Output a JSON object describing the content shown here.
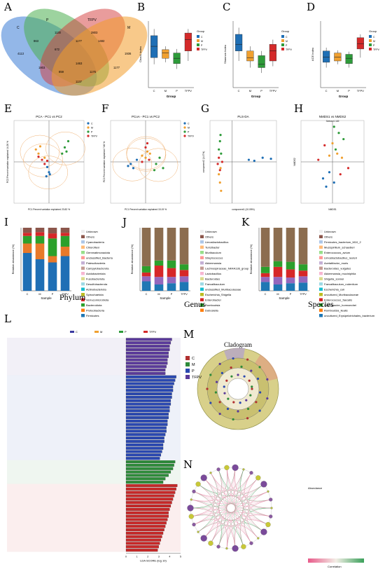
{
  "panel_letters": [
    "A",
    "B",
    "C",
    "D",
    "E",
    "F",
    "G",
    "H",
    "I",
    "J",
    "K",
    "L",
    "M",
    "N"
  ],
  "colors": {
    "C": "#1f6fb5",
    "M": "#f0a030",
    "P": "#2e9b3a",
    "TFPV": "#d42a2a",
    "purple": "#5a3a9a"
  },
  "chart_data": [
    {
      "panel": "A",
      "type": "venn",
      "sets": [
        "C",
        "P",
        "TFPV",
        "M"
      ],
      "colors": [
        "#3a7bd5",
        "#4caf50",
        "#d43a3a",
        "#f29c2a"
      ],
      "regions": [
        "4113",
        "1130",
        "2803",
        "1936",
        "863",
        "672",
        "1177",
        "1482",
        "1803",
        "1463",
        "1176",
        "1177",
        "859",
        "1137"
      ]
    },
    {
      "panel": "B",
      "type": "boxplot",
      "ylabel": "Chao1 Index",
      "xlabel": "Group",
      "categories": [
        "C",
        "M",
        "P",
        "TFPV"
      ],
      "legend_title": "Group",
      "boxes": [
        {
          "name": "C",
          "min": 0.35,
          "q1": 0.45,
          "median": 0.62,
          "q3": 0.78,
          "max": 0.88
        },
        {
          "name": "M",
          "min": 0.38,
          "q1": 0.44,
          "median": 0.52,
          "q3": 0.57,
          "max": 0.62
        },
        {
          "name": "P",
          "min": 0.28,
          "q1": 0.36,
          "median": 0.44,
          "q3": 0.52,
          "max": 0.58
        },
        {
          "name": "TFPV",
          "min": 0.4,
          "q1": 0.55,
          "median": 0.72,
          "q3": 0.82,
          "max": 0.88
        }
      ]
    },
    {
      "panel": "C",
      "type": "boxplot",
      "ylabel": "Shannon Index",
      "xlabel": "Group",
      "categories": [
        "C",
        "M",
        "P",
        "TFPV"
      ],
      "legend_title": "Group",
      "boxes": [
        {
          "name": "C",
          "min": 0.4,
          "q1": 0.55,
          "median": 0.65,
          "q3": 0.8,
          "max": 0.9
        },
        {
          "name": "M",
          "min": 0.3,
          "q1": 0.4,
          "median": 0.45,
          "q3": 0.55,
          "max": 0.62
        },
        {
          "name": "P",
          "min": 0.22,
          "q1": 0.3,
          "median": 0.35,
          "q3": 0.48,
          "max": 0.55
        },
        {
          "name": "TFPV",
          "min": 0.32,
          "q1": 0.4,
          "median": 0.55,
          "q3": 0.65,
          "max": 0.72
        }
      ]
    },
    {
      "panel": "D",
      "type": "boxplot",
      "ylabel": "ACE Index",
      "xlabel": "Group",
      "categories": [
        "C",
        "M",
        "P",
        "TFPV"
      ],
      "legend_title": "Group",
      "boxes": [
        {
          "name": "C",
          "min": 0.3,
          "q1": 0.38,
          "median": 0.46,
          "q3": 0.55,
          "max": 0.6
        },
        {
          "name": "M",
          "min": 0.35,
          "q1": 0.4,
          "median": 0.46,
          "q3": 0.52,
          "max": 0.56
        },
        {
          "name": "P",
          "min": 0.3,
          "q1": 0.36,
          "median": 0.44,
          "q3": 0.5,
          "max": 0.54
        },
        {
          "name": "TFPV",
          "min": 0.45,
          "q1": 0.58,
          "median": 0.66,
          "q3": 0.75,
          "max": 0.8
        }
      ]
    },
    {
      "panel": "E",
      "type": "scatter",
      "title": "PCA - PC1 vs PC2",
      "xlabel": "PC1 Percent variation explained 23.82 %",
      "ylabel": "PC2 Percent variation explained 14.26 %",
      "legend": [
        "C",
        "M",
        "P",
        "TFPV"
      ],
      "xlim": [
        -0.4,
        0.4
      ],
      "ylim": [
        -0.4,
        0.4
      ],
      "points": [
        {
          "g": "C",
          "x": -0.02,
          "y": -0.05
        },
        {
          "g": "C",
          "x": 0.0,
          "y": -0.1
        },
        {
          "g": "C",
          "x": -0.03,
          "y": -0.14
        },
        {
          "g": "C",
          "x": 0.01,
          "y": -0.12
        },
        {
          "g": "M",
          "x": -0.15,
          "y": 0.12
        },
        {
          "g": "M",
          "x": -0.12,
          "y": 0.08
        },
        {
          "g": "M",
          "x": -0.05,
          "y": 0.04
        },
        {
          "g": "M",
          "x": -0.1,
          "y": 0.15
        },
        {
          "g": "P",
          "x": 0.18,
          "y": 0.14
        },
        {
          "g": "P",
          "x": 0.22,
          "y": 0.2
        },
        {
          "g": "P",
          "x": 0.15,
          "y": 0.08
        },
        {
          "g": "P",
          "x": 0.2,
          "y": 0.1
        },
        {
          "g": "TFPV",
          "x": -0.05,
          "y": -0.02
        },
        {
          "g": "TFPV",
          "x": -0.08,
          "y": 0.02
        },
        {
          "g": "TFPV",
          "x": -0.12,
          "y": 0.05
        },
        {
          "g": "TFPV",
          "x": -0.02,
          "y": 0.01
        }
      ]
    },
    {
      "panel": "F",
      "type": "scatter",
      "title": "PCoA - PC1 vs PC2",
      "xlabel": "PC1 Percent variation explained 15.19 %",
      "ylabel": "PC2 Percent variation explained 7.66 %",
      "legend": [
        "C",
        "M",
        "P",
        "TFPV"
      ],
      "xlim": [
        -0.4,
        0.4
      ],
      "ylim": [
        -0.4,
        0.4
      ],
      "points": [
        {
          "g": "C",
          "x": -0.2,
          "y": -0.04
        },
        {
          "g": "C",
          "x": -0.17,
          "y": -0.02
        },
        {
          "g": "C",
          "x": -0.14,
          "y": -0.06
        },
        {
          "g": "C",
          "x": -0.1,
          "y": 0.02
        },
        {
          "g": "M",
          "x": 0.0,
          "y": 0.04
        },
        {
          "g": "M",
          "x": 0.02,
          "y": 0.1
        },
        {
          "g": "M",
          "x": -0.04,
          "y": 0.06
        },
        {
          "g": "M",
          "x": 0.05,
          "y": 0.08
        },
        {
          "g": "P",
          "x": 0.12,
          "y": -0.02
        },
        {
          "g": "P",
          "x": 0.16,
          "y": 0.04
        },
        {
          "g": "P",
          "x": 0.2,
          "y": -0.06
        },
        {
          "g": "P",
          "x": 0.1,
          "y": -0.08
        },
        {
          "g": "TFPV",
          "x": 0.0,
          "y": 0.14
        },
        {
          "g": "TFPV",
          "x": -0.04,
          "y": 0.0
        },
        {
          "g": "TFPV",
          "x": 0.04,
          "y": 0.02
        },
        {
          "g": "TFPV",
          "x": 0.02,
          "y": 0.18
        }
      ]
    },
    {
      "panel": "G",
      "type": "scatter",
      "title": "PLS-DA",
      "xlabel": "component1 (10.05%)",
      "ylabel": "component2 (4.47%)",
      "xlim": [
        -40,
        80
      ],
      "ylim": [
        -40,
        40
      ],
      "points": [
        {
          "g": "C",
          "x": 30,
          "y": 2
        },
        {
          "g": "C",
          "x": 40,
          "y": 1
        },
        {
          "g": "C",
          "x": 55,
          "y": 4
        },
        {
          "g": "C",
          "x": 70,
          "y": 3
        },
        {
          "g": "M",
          "x": -22,
          "y": -20
        },
        {
          "g": "M",
          "x": -20,
          "y": -28
        },
        {
          "g": "M",
          "x": -24,
          "y": -12
        },
        {
          "g": "M",
          "x": -21,
          "y": -6
        },
        {
          "g": "P",
          "x": -21,
          "y": 26
        },
        {
          "g": "P",
          "x": -22,
          "y": 20
        },
        {
          "g": "P",
          "x": -24,
          "y": 12
        },
        {
          "g": "P",
          "x": -20,
          "y": 8
        },
        {
          "g": "TFPV",
          "x": -26,
          "y": -2
        },
        {
          "g": "TFPV",
          "x": -24,
          "y": 4
        },
        {
          "g": "TFPV",
          "x": -22,
          "y": -8
        },
        {
          "g": "TFPV",
          "x": -18,
          "y": 0
        }
      ]
    },
    {
      "panel": "H",
      "type": "scatter",
      "title": "NMDS1 vs NMDS2",
      "subtitle": "Stress=0.169",
      "xlabel": "NMDS1",
      "ylabel": "NMDS2",
      "xlim": [
        -2,
        2
      ],
      "ylim": [
        -2,
        2
      ],
      "points": [
        {
          "g": "C",
          "x": -0.2,
          "y": -0.5
        },
        {
          "g": "C",
          "x": -0.6,
          "y": -0.8
        },
        {
          "g": "C",
          "x": 0.1,
          "y": -1.0
        },
        {
          "g": "C",
          "x": -0.4,
          "y": -1.2
        },
        {
          "g": "M",
          "x": 0.3,
          "y": 0.4
        },
        {
          "g": "M",
          "x": 0.0,
          "y": 0.9
        },
        {
          "g": "M",
          "x": 0.6,
          "y": 0.2
        },
        {
          "g": "M",
          "x": -0.2,
          "y": 0.3
        },
        {
          "g": "P",
          "x": 0.4,
          "y": 1.4
        },
        {
          "g": "P",
          "x": 0.1,
          "y": 1.7
        },
        {
          "g": "P",
          "x": 0.7,
          "y": 1.1
        },
        {
          "g": "P",
          "x": 0.2,
          "y": 0.6
        },
        {
          "g": "TFPV",
          "x": -0.5,
          "y": 0.8
        },
        {
          "g": "TFPV",
          "x": 1.0,
          "y": -0.3
        },
        {
          "g": "TFPV",
          "x": -0.9,
          "y": 0.1
        },
        {
          "g": "TFPV",
          "x": 0.5,
          "y": -0.6
        }
      ]
    },
    {
      "panel": "I",
      "type": "stacked_bar",
      "caption": "Phylum",
      "xlabel": "Sample",
      "ylabel": "Relative abundance (%)",
      "categories": [
        "C",
        "M",
        "P",
        "TFPV"
      ],
      "series": [
        {
          "name": "Firmicutes",
          "color": "#1f6fb5",
          "values": [
            60,
            50,
            45,
            55
          ]
        },
        {
          "name": "Proteobacteria",
          "color": "#e8792a",
          "values": [
            15,
            25,
            10,
            15
          ]
        },
        {
          "name": "Bacteroidota",
          "color": "#2ca02c",
          "values": [
            12,
            12,
            28,
            17
          ]
        },
        {
          "name": "Verrucomicrobiota",
          "color": "#d62728",
          "values": [
            5,
            6,
            8,
            5
          ]
        },
        {
          "name": "Others",
          "color": "#8c564b",
          "values": [
            8,
            7,
            9,
            8
          ]
        }
      ],
      "legend": [
        "Unknown",
        "Others",
        "Cyanobacteria",
        "Chloroflexi",
        "Gemmatimonadota",
        "unclassified_Bacteria",
        "Patescibacteria",
        "Campylobacterota",
        "Acidobacteriota",
        "Fusobacteriota",
        "Desulfobacterota",
        "Actinobacteriota",
        "Spirochaetota",
        "Verrucomicrobiota",
        "Bacteroidota",
        "Proteobacteria",
        "Firmicutes"
      ]
    },
    {
      "panel": "J",
      "type": "stacked_bar",
      "caption": "Genus",
      "xlabel": "Sample",
      "ylabel": "Relative abundance (%)",
      "categories": [
        "C",
        "M",
        "P",
        "TFPV"
      ],
      "series": [
        {
          "name": "Dubosiella",
          "color": "#1f77b4",
          "values": [
            15,
            10,
            12,
            14
          ]
        },
        {
          "name": "Romboutsia",
          "color": "#9467bd",
          "values": [
            8,
            12,
            10,
            9
          ]
        },
        {
          "name": "Enterobacter",
          "color": "#d62728",
          "values": [
            6,
            18,
            14,
            10
          ]
        },
        {
          "name": "Escherichia_Shigella",
          "color": "#2ca02c",
          "values": [
            10,
            8,
            12,
            9
          ]
        },
        {
          "name": "Others",
          "color": "#8c6d4f",
          "values": [
            61,
            52,
            52,
            58
          ]
        }
      ],
      "legend": [
        "Unknown",
        "Others",
        "Limosilactobacillus",
        "Turicibacter",
        "Muribaculum",
        "Streptococcus",
        "Akkermansia",
        "Lachnospiraceae_NK4A136_group",
        "Lactobacillus",
        "Bacteroides",
        "Faecalibaculum",
        "unclassified_Muribaculaceae",
        "Escherichia_Shigella",
        "Enterobacter",
        "Romboutsia",
        "Dubosiella"
      ]
    },
    {
      "panel": "K",
      "type": "stacked_bar",
      "caption": "Species",
      "xlabel": "Sample",
      "ylabel": "Relative abundance (%)",
      "categories": [
        "C",
        "M",
        "P",
        "TFPV"
      ],
      "series": [
        {
          "name": "uncultured_Erysipelotrichales_bacterium",
          "color": "#1f77b4",
          "values": [
            14,
            10,
            12,
            13
          ]
        },
        {
          "name": "Romboutsia_ilealis",
          "color": "#9467bd",
          "values": [
            8,
            12,
            9,
            10
          ]
        },
        {
          "name": "Enterobacter_hormaechei",
          "color": "#d62728",
          "values": [
            6,
            16,
            13,
            9
          ]
        },
        {
          "name": "Enterococcus_faecalis",
          "color": "#2ca02c",
          "values": [
            10,
            9,
            12,
            10
          ]
        },
        {
          "name": "Others",
          "color": "#8c6d4f",
          "values": [
            62,
            53,
            54,
            58
          ]
        }
      ],
      "legend": [
        "Unknown",
        "Others",
        "Firmicutes_bacterium_M10_2",
        "Mucispirillum_schaedleri",
        "Enterococcus_avium",
        "Limosilactobacillus_reuteri",
        "Acetatifactor_muris",
        "Bacteroides_vulgatus",
        "Akkermansia_muciniphila",
        "Shigella_sonnei",
        "Faecalibaculum_rodentium",
        "Escherichia_coli",
        "uncultured_Muribaculaceae",
        "Enterococcus_faecalis",
        "Enterobacter_hormaechei",
        "Romboutsia_ilealis",
        "uncultured_Erysipelotrichales_bacterium"
      ]
    },
    {
      "panel": "L",
      "type": "hbar",
      "xlabel": "LDA SCORE (log 10)",
      "legend": [
        "C",
        "M",
        "P",
        "TFPV"
      ],
      "xlim": [
        0,
        5
      ],
      "groups": [
        {
          "g": "TFPV",
          "values": [
            4.2,
            4.1,
            4.0,
            4.0,
            3.9,
            3.9,
            3.8,
            3.8,
            3.7,
            3.6,
            3.6
          ]
        },
        {
          "g": "P",
          "values": [
            4.6,
            4.5,
            4.4,
            4.3,
            4.3,
            4.2,
            4.2,
            4.1,
            4.1,
            4.0,
            4.0,
            3.9,
            3.9,
            3.8,
            3.8,
            3.7,
            3.7,
            3.6,
            3.5,
            3.5,
            3.4,
            3.4,
            3.3,
            3.2,
            3.1
          ]
        },
        {
          "g": "M",
          "values": [
            4.5,
            4.4,
            4.3,
            4.1,
            3.9,
            3.6,
            3.4
          ]
        },
        {
          "g": "C",
          "values": [
            4.7,
            4.6,
            4.5,
            4.4,
            4.3,
            4.2,
            4.1,
            4.0,
            3.9,
            3.9,
            3.8,
            3.7,
            3.6,
            3.5,
            3.4,
            3.3,
            3.2,
            3.1,
            3.0,
            2.9
          ]
        }
      ]
    },
    {
      "panel": "M",
      "type": "cladogram",
      "title": "Cladogram",
      "legend": [
        "C",
        "M",
        "P",
        "TFPV"
      ]
    },
    {
      "panel": "N",
      "type": "network",
      "legend_title": "Abundance",
      "colorbar_label": "Correlation"
    }
  ],
  "captions": {
    "phylum": "Phylum",
    "genus": "Genus",
    "species": "Species",
    "cladogram": "Cladogram"
  }
}
